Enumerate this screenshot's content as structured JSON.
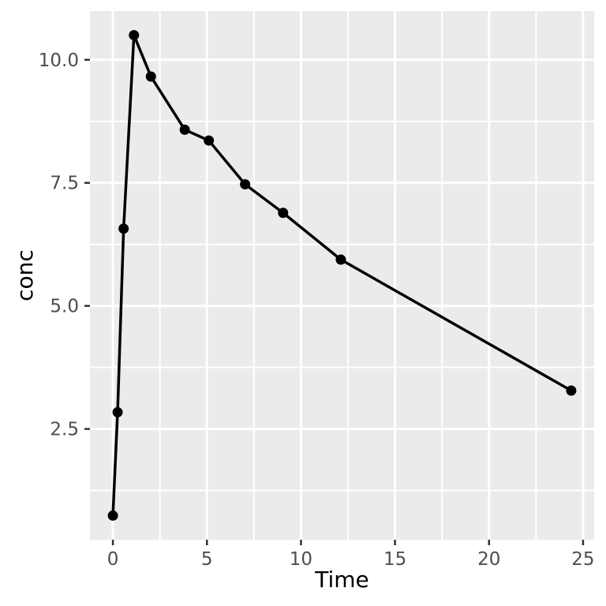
{
  "chart_data": {
    "type": "line",
    "title": "",
    "xlabel": "Time",
    "ylabel": "conc",
    "x": [
      0,
      0.25,
      0.57,
      1.12,
      2.02,
      3.82,
      5.1,
      7.03,
      9.05,
      12.12,
      24.37
    ],
    "y": [
      0.74,
      2.84,
      6.57,
      10.5,
      9.66,
      8.58,
      8.36,
      7.47,
      6.89,
      5.94,
      3.28
    ],
    "xlim": [
      -1.22,
      25.59
    ],
    "ylim": [
      0.25,
      10.99
    ],
    "x_major_ticks": [
      0,
      5,
      10,
      15,
      20,
      25
    ],
    "x_minor_ticks": [
      2.5,
      7.5,
      12.5,
      17.5,
      22.5
    ],
    "y_major_ticks": [
      2.5,
      5.0,
      7.5,
      10.0
    ],
    "y_minor_ticks": [
      1.25,
      3.75,
      6.25,
      8.75
    ],
    "x_tick_labels": [
      "0",
      "5",
      "10",
      "15",
      "20",
      "25"
    ],
    "y_tick_labels": [
      "2.5",
      "5.0",
      "7.5",
      "10.0"
    ],
    "grid": true,
    "legend": false,
    "marker": "filled-circle",
    "style": "ggplot2-theme-gray",
    "colors": {
      "outer_background": "#FFFFFF",
      "panel_background": "#EBEBEB",
      "gridline": "#FFFFFF",
      "series": "#000000",
      "marker": "#000000",
      "tick_mark": "#333333",
      "tick_label": "#4D4D4D",
      "axis_title": "#000000"
    }
  }
}
